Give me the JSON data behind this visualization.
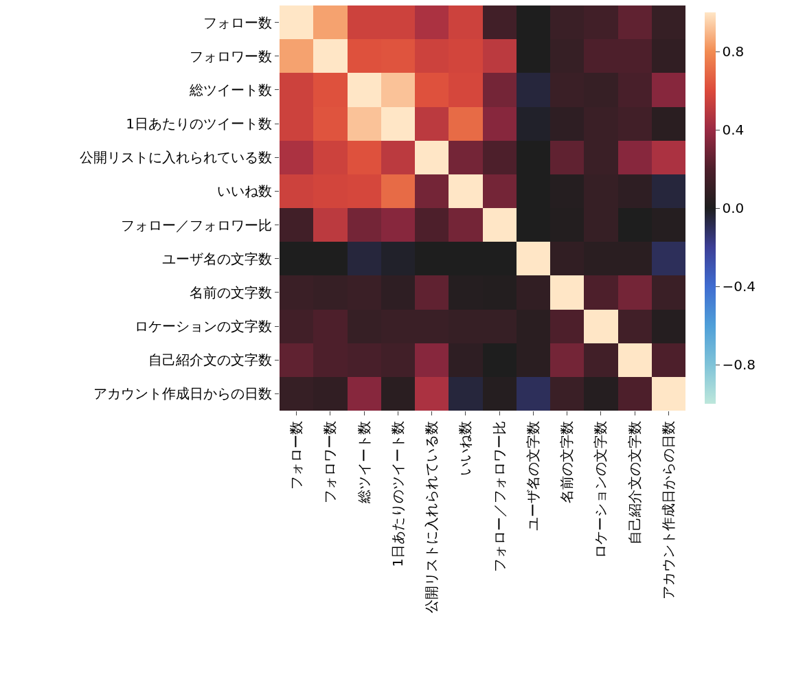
{
  "chart_data": {
    "type": "heatmap",
    "categories": [
      "フォロー数",
      "フォロワー数",
      "総ツイート数",
      "1日あたりのツイート数",
      "公開リストに入れられている数",
      "いいね数",
      "フォロー／フォロワー比",
      "ユーザ名の文字数",
      "名前の文字数",
      "ロケーションの文字数",
      "自己紹介文の文字数",
      "アカウント作成日からの日数"
    ],
    "y_categories": [
      "フォロー数",
      "フォロワー数",
      "総ツイート数",
      "1日あたりのツイート数",
      "公開リストに入れられている数",
      "いいね数",
      "フォロー／フォロワー比",
      "ユーザ名の文字数",
      "名前の文字数",
      "ロケーションの文字数",
      "自己紹介文の文字数",
      "アカウント作成日からの日数"
    ],
    "cells": [
      [
        1,
        0.85,
        0.55,
        0.55,
        0.45,
        0.55,
        0.15,
        0.0,
        0.12,
        0.15,
        0.25,
        0.1
      ],
      [
        0.85,
        1,
        0.62,
        0.63,
        0.55,
        0.57,
        0.5,
        0.0,
        0.1,
        0.2,
        0.2,
        0.08
      ],
      [
        0.55,
        0.62,
        1,
        0.92,
        0.62,
        0.58,
        0.3,
        -0.05,
        0.12,
        0.1,
        0.18,
        0.35
      ],
      [
        0.55,
        0.63,
        0.92,
        1,
        0.5,
        0.7,
        0.35,
        -0.02,
        0.07,
        0.12,
        0.15,
        0.05
      ],
      [
        0.45,
        0.55,
        0.62,
        0.5,
        1,
        0.3,
        0.2,
        0.0,
        0.25,
        0.12,
        0.35,
        0.45
      ],
      [
        0.55,
        0.57,
        0.58,
        0.7,
        0.3,
        1,
        0.3,
        0.0,
        0.03,
        0.1,
        0.07,
        -0.05
      ],
      [
        0.15,
        0.5,
        0.3,
        0.35,
        0.2,
        0.3,
        1,
        0.0,
        0.02,
        0.1,
        0.0,
        0.03
      ],
      [
        0.0,
        0.0,
        -0.05,
        -0.02,
        0.0,
        0.0,
        0.0,
        1,
        0.08,
        0.05,
        0.05,
        -0.1
      ],
      [
        0.12,
        0.1,
        0.12,
        0.07,
        0.25,
        0.03,
        0.02,
        0.08,
        1,
        0.2,
        0.3,
        0.12
      ],
      [
        0.15,
        0.2,
        0.1,
        0.12,
        0.12,
        0.1,
        0.1,
        0.05,
        0.2,
        1,
        0.15,
        0.03
      ],
      [
        0.25,
        0.2,
        0.18,
        0.15,
        0.35,
        0.07,
        0.0,
        0.05,
        0.3,
        0.15,
        1,
        0.2
      ],
      [
        0.1,
        0.08,
        0.35,
        0.05,
        0.45,
        -0.05,
        0.03,
        -0.1,
        0.12,
        0.03,
        0.2,
        1
      ]
    ],
    "clim": [
      -1,
      1
    ],
    "cticks": [
      {
        "value": -0.8,
        "label": "−0.8"
      },
      {
        "value": -0.4,
        "label": "−0.4"
      },
      {
        "value": 0,
        "label": "0.0"
      },
      {
        "value": 0.4,
        "label": "0.4"
      },
      {
        "value": 0.8,
        "label": "0.8"
      }
    ]
  }
}
